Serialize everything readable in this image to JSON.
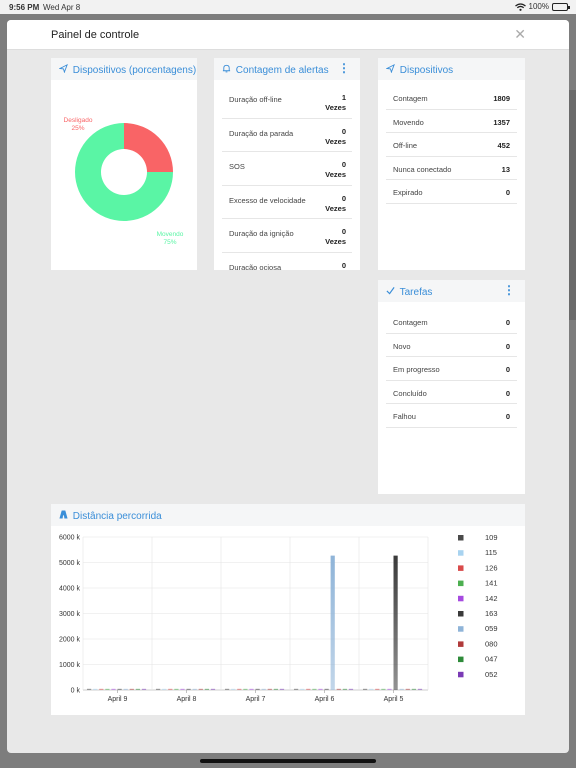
{
  "status_bar": {
    "time": "9:56 PM",
    "date": "Wed Apr 8",
    "battery": "100%"
  },
  "modal": {
    "title": "Painel de controle",
    "close_icon": "close-icon"
  },
  "pie_card": {
    "title": "Dispositivos (porcentagens)",
    "slices": [
      {
        "label": "Desligado",
        "percent_text": "25%",
        "value": 25,
        "color": "#f96466"
      },
      {
        "label": "Movendo",
        "percent_text": "75%",
        "value": 75,
        "color": "#5af5a5"
      }
    ]
  },
  "alerts_card": {
    "title": "Contagem de alertas",
    "rows": [
      {
        "label": "Duração off-line",
        "value": "1",
        "unit": "Vezes"
      },
      {
        "label": "Duração da parada",
        "value": "0",
        "unit": "Vezes"
      },
      {
        "label": "SOS",
        "value": "0",
        "unit": "Vezes"
      },
      {
        "label": "Excesso de velocidade",
        "value": "0",
        "unit": "Vezes"
      },
      {
        "label": "Duração da ignição",
        "value": "0",
        "unit": "Vezes"
      },
      {
        "label": "Duração ociosa",
        "value": "0",
        "unit": ""
      }
    ]
  },
  "devices_card": {
    "title": "Dispositivos",
    "rows": [
      {
        "label": "Contagem",
        "value": "1809"
      },
      {
        "label": "Movendo",
        "value": "1357"
      },
      {
        "label": "Off-line",
        "value": "452"
      },
      {
        "label": "Nunca conectado",
        "value": "13"
      },
      {
        "label": "Expirado",
        "value": "0"
      }
    ]
  },
  "tasks_card": {
    "title": "Tarefas",
    "rows": [
      {
        "label": "Contagem",
        "value": "0"
      },
      {
        "label": "Novo",
        "value": "0"
      },
      {
        "label": "Em progresso",
        "value": "0"
      },
      {
        "label": "Concluído",
        "value": "0"
      },
      {
        "label": "Falhou",
        "value": "0"
      }
    ]
  },
  "distance_card": {
    "title": "Distância percorrida"
  },
  "chart_data": {
    "type": "bar",
    "title": "Distância percorrida",
    "categories": [
      "April 9",
      "April 8",
      "April 7",
      "April 6",
      "April 5"
    ],
    "y_ticks": [
      "0 k",
      "1000 k",
      "2000 k",
      "3000 k",
      "4000 k",
      "5000 k",
      "6000 k"
    ],
    "ylim": [
      0,
      6000
    ],
    "grid": true,
    "legend_position": "right",
    "series": [
      {
        "name": "109",
        "color": "#4a4a4a",
        "values": [
          0,
          0,
          0,
          0,
          0
        ]
      },
      {
        "name": "115",
        "color": "#a8d3f0",
        "values": [
          0,
          0,
          0,
          0,
          0
        ]
      },
      {
        "name": "126",
        "color": "#d94a4a",
        "values": [
          0,
          0,
          0,
          0,
          0
        ]
      },
      {
        "name": "141",
        "color": "#4caf50",
        "values": [
          0,
          0,
          0,
          0,
          0
        ]
      },
      {
        "name": "142",
        "color": "#a64ae0",
        "values": [
          0,
          0,
          0,
          0,
          0
        ]
      },
      {
        "name": "163",
        "color": "#3a3a3a",
        "values": [
          0,
          0,
          0,
          0,
          5270
        ]
      },
      {
        "name": "059",
        "color": "#8fb4d8",
        "values": [
          0,
          0,
          0,
          5270,
          0
        ]
      },
      {
        "name": "080",
        "color": "#b03a3a",
        "values": [
          0,
          0,
          0,
          0,
          0
        ]
      },
      {
        "name": "047",
        "color": "#2e8b3a",
        "values": [
          0,
          0,
          0,
          0,
          0
        ]
      },
      {
        "name": "052",
        "color": "#7a3ab5",
        "values": [
          0,
          0,
          0,
          0,
          0
        ]
      }
    ]
  }
}
